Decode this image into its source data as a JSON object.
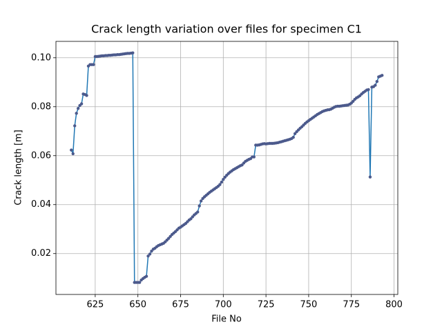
{
  "chart_data": {
    "type": "line",
    "title": "Crack length variation over files for specimen C1",
    "xlabel": "File No",
    "ylabel": "Crack length [m]",
    "color": "#1f77b4",
    "marker_color": "#4c5a8c",
    "grid": true,
    "xlim": [
      602.0,
      802.2
    ],
    "ylim": [
      0.0033,
      0.1067
    ],
    "xticks": [
      625,
      650,
      675,
      700,
      725,
      750,
      775,
      800
    ],
    "yticks": [
      0.02,
      0.04,
      0.06,
      0.08,
      {
        "value": 0.1,
        "label": "0.10"
      }
    ],
    "x": [
      611,
      612,
      613,
      614,
      615,
      616,
      617,
      618,
      619,
      620,
      621,
      622,
      623,
      624,
      625,
      626,
      627,
      628,
      629,
      630,
      631,
      632,
      633,
      634,
      635,
      636,
      637,
      638,
      639,
      640,
      641,
      642,
      643,
      644,
      645,
      646,
      647,
      648,
      649,
      650,
      651,
      652,
      653,
      654,
      655,
      656,
      657,
      658,
      659,
      660,
      661,
      662,
      663,
      664,
      665,
      666,
      667,
      668,
      669,
      670,
      671,
      672,
      673,
      674,
      675,
      676,
      677,
      678,
      679,
      680,
      681,
      682,
      683,
      684,
      685,
      686,
      687,
      688,
      689,
      690,
      691,
      692,
      693,
      694,
      695,
      696,
      697,
      698,
      699,
      700,
      701,
      702,
      703,
      704,
      705,
      706,
      707,
      708,
      709,
      710,
      711,
      712,
      713,
      714,
      715,
      716,
      717,
      718,
      719,
      720,
      721,
      722,
      723,
      724,
      725,
      726,
      727,
      728,
      729,
      730,
      731,
      732,
      733,
      734,
      735,
      736,
      737,
      738,
      739,
      740,
      741,
      742,
      743,
      744,
      745,
      746,
      747,
      748,
      749,
      750,
      751,
      752,
      753,
      754,
      755,
      756,
      757,
      758,
      759,
      760,
      761,
      762,
      763,
      764,
      765,
      766,
      767,
      768,
      769,
      770,
      771,
      772,
      773,
      774,
      775,
      776,
      777,
      778,
      779,
      780,
      781,
      782,
      783,
      784,
      785,
      786,
      787,
      788,
      789,
      790,
      791,
      792,
      793
    ],
    "values": [
      0.0623,
      0.0608,
      0.0722,
      0.0773,
      0.0793,
      0.0805,
      0.0812,
      0.0852,
      0.085,
      0.0846,
      0.0966,
      0.0972,
      0.0972,
      0.0972,
      0.1005,
      0.1005,
      0.1006,
      0.1007,
      0.1008,
      0.1008,
      0.1009,
      0.1009,
      0.101,
      0.101,
      0.1011,
      0.1012,
      0.1012,
      0.1013,
      0.1013,
      0.1014,
      0.1015,
      0.1016,
      0.1017,
      0.1018,
      0.1018,
      0.1019,
      0.102,
      0.0082,
      0.0082,
      0.0082,
      0.0082,
      0.0092,
      0.0098,
      0.0103,
      0.0107,
      0.019,
      0.0198,
      0.021,
      0.0218,
      0.0222,
      0.0228,
      0.0233,
      0.0236,
      0.0239,
      0.0242,
      0.0248,
      0.0255,
      0.0262,
      0.027,
      0.0278,
      0.0284,
      0.029,
      0.0297,
      0.0304,
      0.0308,
      0.0313,
      0.0318,
      0.0323,
      0.033,
      0.0337,
      0.0342,
      0.035,
      0.0358,
      0.0364,
      0.037,
      0.0395,
      0.0415,
      0.0425,
      0.0432,
      0.0438,
      0.0444,
      0.045,
      0.0455,
      0.046,
      0.0465,
      0.047,
      0.0475,
      0.0482,
      0.0492,
      0.0503,
      0.0512,
      0.052,
      0.0527,
      0.0533,
      0.0538,
      0.0543,
      0.0547,
      0.0551,
      0.0555,
      0.0559,
      0.0562,
      0.057,
      0.0577,
      0.0581,
      0.0585,
      0.0588,
      0.0595,
      0.0595,
      0.0643,
      0.0643,
      0.0644,
      0.0646,
      0.0648,
      0.0649,
      0.0648,
      0.0649,
      0.065,
      0.065,
      0.065,
      0.0651,
      0.0652,
      0.0653,
      0.0655,
      0.0657,
      0.0659,
      0.0661,
      0.0663,
      0.0665,
      0.0667,
      0.067,
      0.0675,
      0.069,
      0.0698,
      0.0705,
      0.0712,
      0.0718,
      0.0725,
      0.0732,
      0.0738,
      0.0743,
      0.0748,
      0.0753,
      0.0758,
      0.0763,
      0.0768,
      0.0772,
      0.0776,
      0.078,
      0.0783,
      0.0785,
      0.0787,
      0.0788,
      0.079,
      0.0794,
      0.0798,
      0.0801,
      0.0802,
      0.0802,
      0.0803,
      0.0804,
      0.0805,
      0.0806,
      0.0807,
      0.081,
      0.0815,
      0.0822,
      0.083,
      0.0836,
      0.084,
      0.0845,
      0.0852,
      0.0858,
      0.0863,
      0.0868,
      0.087,
      0.0513,
      0.088,
      0.0882,
      0.0888,
      0.0903,
      0.0922,
      0.0925,
      0.0928
    ]
  }
}
